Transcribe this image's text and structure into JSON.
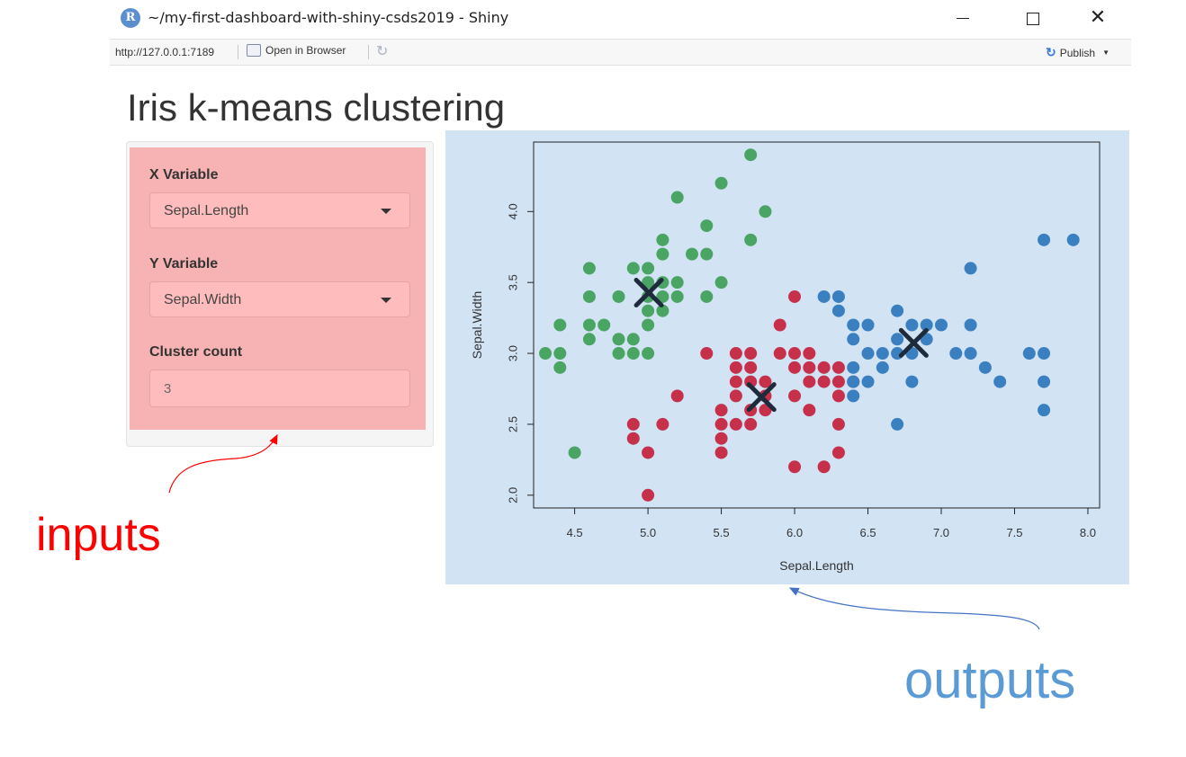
{
  "window": {
    "title": "~/my-first-dashboard-with-shiny-csds2019 - Shiny",
    "logo_letter": "R",
    "minimize_icon": "minimize-icon",
    "maximize_icon": "maximize-icon",
    "close_glyph": "✕"
  },
  "toolbar": {
    "url": "http://127.0.0.1:7189",
    "open_in_browser": "Open in Browser",
    "refresh_glyph": "↻",
    "publish_label": "Publish",
    "publish_glyph": "↻"
  },
  "app": {
    "title": "Iris k-means clustering",
    "inputs": {
      "x_label": "X Variable",
      "x_value": "Sepal.Length",
      "y_label": "Y Variable",
      "y_value": "Sepal.Width",
      "cluster_label": "Cluster count",
      "cluster_value": "3"
    }
  },
  "annotations": {
    "inputs": "inputs",
    "outputs": "outputs",
    "inputs_color": "#ff0000",
    "outputs_color": "#5b9bd5"
  },
  "chart_data": {
    "type": "scatter",
    "title": "",
    "xlabel": "Sepal.Length",
    "ylabel": "Sepal.Width",
    "xlim": [
      4.22,
      8.08
    ],
    "ylim": [
      1.91,
      4.49
    ],
    "xticks": [
      "4.5",
      "5.0",
      "5.5",
      "6.0",
      "6.5",
      "7.0",
      "7.5",
      "8.0"
    ],
    "yticks": [
      "2.0",
      "2.5",
      "3.0",
      "3.5",
      "4.0"
    ],
    "series": [
      {
        "color": "#4aa564",
        "points": [
          [
            4.3,
            3.0
          ],
          [
            4.4,
            3.0
          ],
          [
            4.4,
            2.9
          ],
          [
            4.4,
            3.2
          ],
          [
            4.5,
            2.3
          ],
          [
            4.6,
            3.6
          ],
          [
            4.6,
            3.4
          ],
          [
            4.6,
            3.2
          ],
          [
            4.6,
            3.1
          ],
          [
            4.7,
            3.2
          ],
          [
            4.8,
            3.4
          ],
          [
            4.8,
            3.1
          ],
          [
            4.8,
            3.0
          ],
          [
            4.9,
            3.6
          ],
          [
            4.9,
            3.1
          ],
          [
            4.9,
            3.0
          ],
          [
            5.0,
            3.6
          ],
          [
            5.0,
            3.5
          ],
          [
            5.0,
            3.4
          ],
          [
            5.0,
            3.3
          ],
          [
            5.0,
            3.2
          ],
          [
            5.0,
            3.0
          ],
          [
            5.1,
            3.8
          ],
          [
            5.1,
            3.7
          ],
          [
            5.1,
            3.5
          ],
          [
            5.1,
            3.4
          ],
          [
            5.1,
            3.3
          ],
          [
            5.2,
            4.1
          ],
          [
            5.2,
            3.5
          ],
          [
            5.2,
            3.4
          ],
          [
            5.3,
            3.7
          ],
          [
            5.4,
            3.9
          ],
          [
            5.4,
            3.7
          ],
          [
            5.4,
            3.4
          ],
          [
            5.5,
            4.2
          ],
          [
            5.5,
            3.5
          ],
          [
            5.7,
            4.4
          ],
          [
            5.7,
            3.8
          ],
          [
            5.8,
            4.0
          ]
        ]
      },
      {
        "color": "#c6304a",
        "points": [
          [
            4.9,
            2.5
          ],
          [
            4.9,
            2.4
          ],
          [
            5.0,
            2.3
          ],
          [
            5.0,
            2.0
          ],
          [
            5.1,
            2.5
          ],
          [
            5.2,
            2.7
          ],
          [
            5.4,
            3.0
          ],
          [
            5.5,
            2.6
          ],
          [
            5.5,
            2.5
          ],
          [
            5.5,
            2.4
          ],
          [
            5.5,
            2.3
          ],
          [
            5.6,
            3.0
          ],
          [
            5.6,
            2.9
          ],
          [
            5.6,
            2.8
          ],
          [
            5.6,
            2.7
          ],
          [
            5.6,
            2.5
          ],
          [
            5.7,
            3.0
          ],
          [
            5.7,
            2.9
          ],
          [
            5.7,
            2.8
          ],
          [
            5.7,
            2.6
          ],
          [
            5.7,
            2.5
          ],
          [
            5.8,
            2.8
          ],
          [
            5.8,
            2.7
          ],
          [
            5.8,
            2.6
          ],
          [
            5.9,
            3.2
          ],
          [
            5.9,
            3.0
          ],
          [
            6.0,
            3.4
          ],
          [
            6.0,
            3.0
          ],
          [
            6.0,
            2.9
          ],
          [
            6.0,
            2.7
          ],
          [
            6.0,
            2.2
          ],
          [
            6.1,
            3.0
          ],
          [
            6.1,
            2.9
          ],
          [
            6.1,
            2.8
          ],
          [
            6.1,
            2.6
          ],
          [
            6.2,
            2.9
          ],
          [
            6.2,
            2.8
          ],
          [
            6.2,
            2.2
          ],
          [
            6.3,
            2.9
          ],
          [
            6.3,
            2.8
          ],
          [
            6.3,
            2.7
          ],
          [
            6.3,
            2.5
          ],
          [
            6.3,
            2.3
          ],
          [
            6.4,
            2.8
          ]
        ]
      },
      {
        "color": "#3a80c0",
        "points": [
          [
            6.2,
            3.4
          ],
          [
            6.3,
            3.4
          ],
          [
            6.3,
            3.3
          ],
          [
            6.4,
            3.2
          ],
          [
            6.4,
            3.1
          ],
          [
            6.4,
            2.9
          ],
          [
            6.4,
            2.8
          ],
          [
            6.4,
            2.7
          ],
          [
            6.5,
            3.2
          ],
          [
            6.5,
            3.0
          ],
          [
            6.5,
            2.8
          ],
          [
            6.6,
            3.0
          ],
          [
            6.6,
            2.9
          ],
          [
            6.7,
            3.3
          ],
          [
            6.7,
            3.1
          ],
          [
            6.7,
            3.0
          ],
          [
            6.7,
            2.5
          ],
          [
            6.8,
            3.2
          ],
          [
            6.8,
            3.0
          ],
          [
            6.8,
            2.8
          ],
          [
            6.9,
            3.2
          ],
          [
            6.9,
            3.1
          ],
          [
            7.0,
            3.2
          ],
          [
            7.1,
            3.0
          ],
          [
            7.2,
            3.6
          ],
          [
            7.2,
            3.2
          ],
          [
            7.2,
            3.0
          ],
          [
            7.3,
            2.9
          ],
          [
            7.4,
            2.8
          ],
          [
            7.6,
            3.0
          ],
          [
            7.7,
            3.8
          ],
          [
            7.7,
            3.0
          ],
          [
            7.7,
            2.8
          ],
          [
            7.7,
            2.6
          ],
          [
            7.9,
            3.8
          ]
        ]
      }
    ],
    "centers": [
      [
        5.006,
        3.428
      ],
      [
        5.774,
        2.692
      ],
      [
        6.812,
        3.074
      ]
    ],
    "center_color": "#1d2b3a"
  }
}
